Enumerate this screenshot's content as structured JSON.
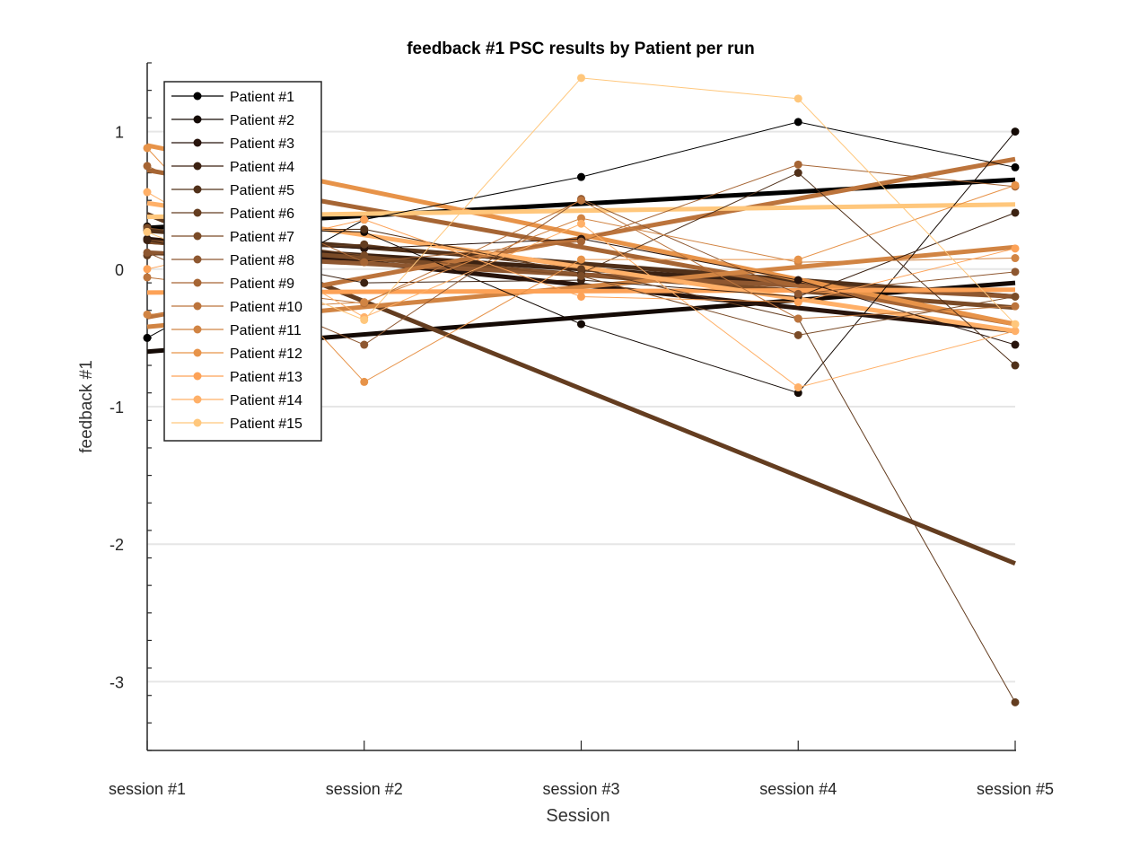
{
  "chart_data": {
    "type": "line",
    "title": "feedback #1  PSC results by Patient per run",
    "xlabel": "Session",
    "ylabel": "feedback #1",
    "categories": [
      "session #1",
      "session #2",
      "session #3",
      "session #4",
      "session #5"
    ],
    "ylim": [
      -3.5,
      1.5
    ],
    "yticks": [
      -3,
      -2,
      -1,
      0,
      1
    ],
    "grid": "horizontal",
    "legend_position": "top-left",
    "series": [
      {
        "name": "Patient #1",
        "color": "#000000",
        "values": [
          -0.5,
          0.36,
          0.67,
          1.07,
          0.74
        ],
        "trend": [
          0.3,
          0.65
        ]
      },
      {
        "name": "Patient #2",
        "color": "#140a05",
        "values": [
          0.31,
          0.27,
          -0.4,
          -0.9,
          1.0
        ],
        "trend": [
          -0.6,
          -0.1
        ]
      },
      {
        "name": "Patient #3",
        "color": "#28140c",
        "values": [
          0.22,
          0.15,
          0.22,
          -0.08,
          -0.55
        ],
        "trend": [
          0.22,
          -0.45
        ]
      },
      {
        "name": "Patient #4",
        "color": "#3c2212",
        "values": [
          0.21,
          -0.1,
          -0.08,
          -0.2,
          0.41
        ],
        "trend": [
          0.2,
          -0.2
        ]
      },
      {
        "name": "Patient #5",
        "color": "#503019",
        "values": [
          0.28,
          0.29,
          -0.03,
          0.7,
          -0.7
        ],
        "trend": [
          0.28,
          -0.2
        ]
      },
      {
        "name": "Patient #6",
        "color": "#643d20",
        "values": [
          0.1,
          0.18,
          0.0,
          -0.36,
          -3.15
        ],
        "trend": [
          0.4,
          -2.14
        ]
      },
      {
        "name": "Patient #7",
        "color": "#7a4b27",
        "values": [
          0.3,
          0.1,
          -0.05,
          -0.48,
          -0.2
        ],
        "trend": [
          0.2,
          -0.28
        ]
      },
      {
        "name": "Patient #8",
        "color": "#8e5730",
        "values": [
          0.12,
          -0.55,
          0.51,
          -0.18,
          -0.02
        ],
        "trend": [
          0.12,
          -0.2
        ]
      },
      {
        "name": "Patient #9",
        "color": "#a66534",
        "values": [
          0.75,
          0.05,
          0.2,
          0.76,
          0.6
        ],
        "trend": [
          0.72,
          -0.4
        ]
      },
      {
        "name": "Patient #10",
        "color": "#bc743c",
        "values": [
          -0.06,
          -0.25,
          0.5,
          -0.36,
          -0.27
        ],
        "trend": [
          -0.35,
          0.8
        ]
      },
      {
        "name": "Patient #11",
        "color": "#d18443",
        "values": [
          -0.33,
          -0.24,
          0.37,
          0.05,
          0.08
        ],
        "trend": [
          -0.42,
          0.16
        ]
      },
      {
        "name": "Patient #12",
        "color": "#e79349",
        "values": [
          0.88,
          -0.82,
          0.07,
          0.07,
          0.61
        ],
        "trend": [
          0.9,
          -0.4
        ]
      },
      {
        "name": "Patient #13",
        "color": "#fda257",
        "values": [
          0.0,
          0.36,
          -0.2,
          -0.24,
          0.15
        ],
        "trend": [
          -0.17,
          -0.15
        ]
      },
      {
        "name": "Patient #14",
        "color": "#ffb068",
        "values": [
          0.56,
          -0.35,
          0.33,
          -0.86,
          -0.45
        ],
        "trend": [
          0.48,
          -0.45
        ]
      },
      {
        "name": "Patient #15",
        "color": "#ffc77c",
        "values": [
          0.27,
          -0.37,
          1.39,
          1.24,
          -0.4
        ],
        "trend": [
          0.38,
          0.47
        ]
      }
    ]
  }
}
